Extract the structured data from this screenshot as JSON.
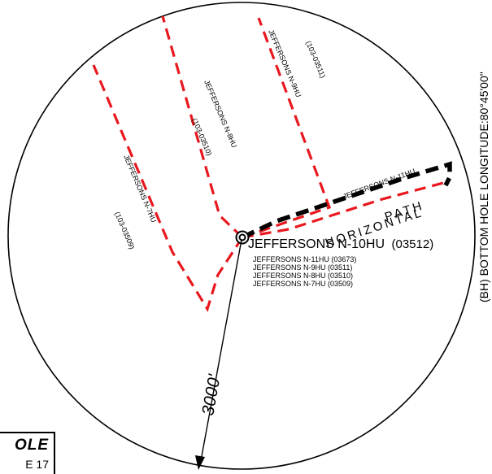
{
  "radius_label": "3000'",
  "main_well": {
    "label": "JEFFERSONS N-10HU",
    "number": "(03512)"
  },
  "well_list": [
    "JEFFERSONS N-11HU (03673)",
    "JEFFERSONS N-9HU (03511)",
    "JEFFERSONS N-8HU (03510)",
    "JEFFERSONS N-7HU (03509)"
  ],
  "laterals": [
    {
      "name": "JEFFERSONS N-7HU",
      "api": "(103-03509)"
    },
    {
      "name": "JEFFERSONS N-8HU",
      "api": "(103-03510)"
    },
    {
      "name": "JEFFERSONS N-9HU",
      "api": "(103-03511)"
    },
    {
      "name": "JEFFERSONS N-11HU",
      "api": ""
    }
  ],
  "horizontal_path_label": {
    "line1": "HORIZONTAL",
    "line2": "PATH"
  },
  "bottom_hole_text": "(BH) BOTTOM HOLE LONGITUDE:80°45'00\"",
  "legend": {
    "title": "OLE",
    "subtitle": "E 17"
  },
  "colors": {
    "offset_wells": "#e8181e",
    "subject_well": "#000000"
  }
}
